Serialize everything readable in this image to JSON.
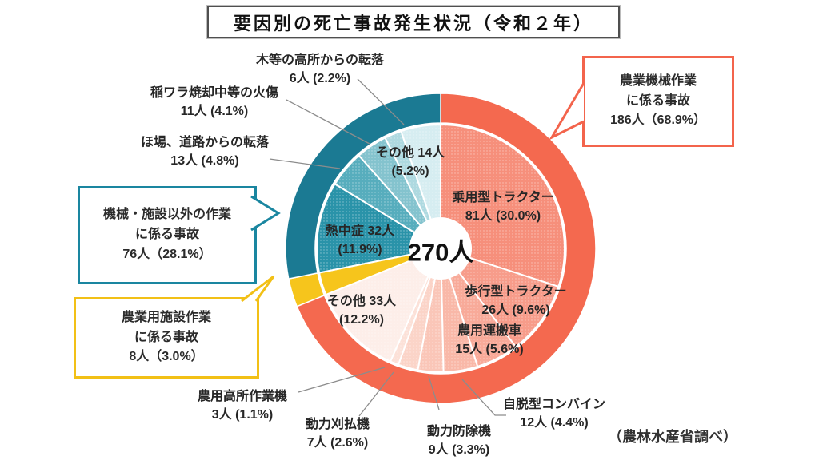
{
  "title": "要因別の死亡事故発生状況（令和２年）",
  "source_note": "（農林水産省調べ）",
  "chart_data": {
    "type": "pie",
    "title": "要因別の死亡事故発生状況（令和２年）",
    "total": 270,
    "total_label": "270人",
    "unit": "人",
    "legend_position": "callouts",
    "groups": [
      {
        "name": "農業機械作業に係る事故",
        "count": 186,
        "pct": 68.9,
        "color": "#f4694f",
        "callout_lines": [
          "農業機械作業",
          "に係る事故",
          "186人（68.9%）"
        ]
      },
      {
        "name": "農業用施設作業に係る事故",
        "count": 8,
        "pct": 3.0,
        "color": "#f6c51c",
        "callout_lines": [
          "農業用施設作業",
          "に係る事故",
          "8人（3.0%）"
        ]
      },
      {
        "name": "機械・施設以外の作業に係る事故",
        "count": 76,
        "pct": 28.1,
        "color": "#1b7a93",
        "callout_lines": [
          "機械・施設以外の作業",
          "に係る事故",
          "76人（28.1%）"
        ]
      }
    ],
    "segments": [
      {
        "label": "乗用型トラクター",
        "count": 81,
        "pct": 30.0,
        "group": 0,
        "color": "#f68f7b",
        "lines": [
          "乗用型トラクター",
          "81人 (30.0%)"
        ]
      },
      {
        "label": "歩行型トラクター",
        "count": 26,
        "pct": 9.6,
        "group": 0,
        "color": "#f79c8a",
        "lines": [
          "歩行型トラクター",
          "26人 (9.6%)"
        ]
      },
      {
        "label": "農用運搬車",
        "count": 15,
        "pct": 5.6,
        "group": 0,
        "color": "#f8aa99",
        "lines": [
          "農用運搬車",
          "15人 (5.6%)"
        ]
      },
      {
        "label": "自脱型コンバイン",
        "count": 12,
        "pct": 4.4,
        "group": 0,
        "color": "#f9b8a8",
        "lines": [
          "自脱型コンバイン",
          "12人 (4.4%)"
        ]
      },
      {
        "label": "動力防除機",
        "count": 9,
        "pct": 3.3,
        "group": 0,
        "color": "#fac6b8",
        "lines": [
          "動力防除機",
          "9人 (3.3%)"
        ]
      },
      {
        "label": "動力刈払機",
        "count": 7,
        "pct": 2.6,
        "group": 0,
        "color": "#fbd4c8",
        "lines": [
          "動力刈払機",
          "7人 (2.6%)"
        ]
      },
      {
        "label": "農用高所作業機",
        "count": 3,
        "pct": 1.1,
        "group": 0,
        "color": "#fce1d8",
        "lines": [
          "農用高所作業機",
          "3人 (1.1%)"
        ]
      },
      {
        "label": "その他（農業機械）",
        "count": 33,
        "pct": 12.2,
        "group": 0,
        "color": "#fdeee9",
        "lines": [
          "その他 33人",
          "(12.2%)"
        ]
      },
      {
        "label": "農業用施設作業",
        "count": 8,
        "pct": 3.0,
        "group": 1,
        "color": "#f6c51c",
        "lines": [
          "",
          ""
        ]
      },
      {
        "label": "熱中症",
        "count": 32,
        "pct": 11.9,
        "group": 2,
        "color": "#2a93a9",
        "lines": [
          "熱中症 32人",
          "(11.9%)"
        ]
      },
      {
        "label": "ほ場、道路からの転落",
        "count": 13,
        "pct": 4.8,
        "group": 2,
        "color": "#57adbd",
        "lines": [
          "ほ場、道路からの転落",
          "13人 (4.8%)"
        ]
      },
      {
        "label": "稲ワラ焼却中等の火傷",
        "count": 11,
        "pct": 4.1,
        "group": 2,
        "color": "#84c3ce",
        "lines": [
          "稲ワラ焼却中等の火傷",
          "11人 (4.1%)"
        ]
      },
      {
        "label": "木等の高所からの転落",
        "count": 6,
        "pct": 2.2,
        "group": 2,
        "color": "#aed9e0",
        "lines": [
          "木等の高所からの転落",
          "6人 (2.2%)"
        ]
      },
      {
        "label": "その他（機械・施設以外）",
        "count": 14,
        "pct": 5.2,
        "group": 2,
        "color": "#d6edf1",
        "lines": [
          "その他 14人",
          "(5.2%)"
        ]
      }
    ]
  }
}
